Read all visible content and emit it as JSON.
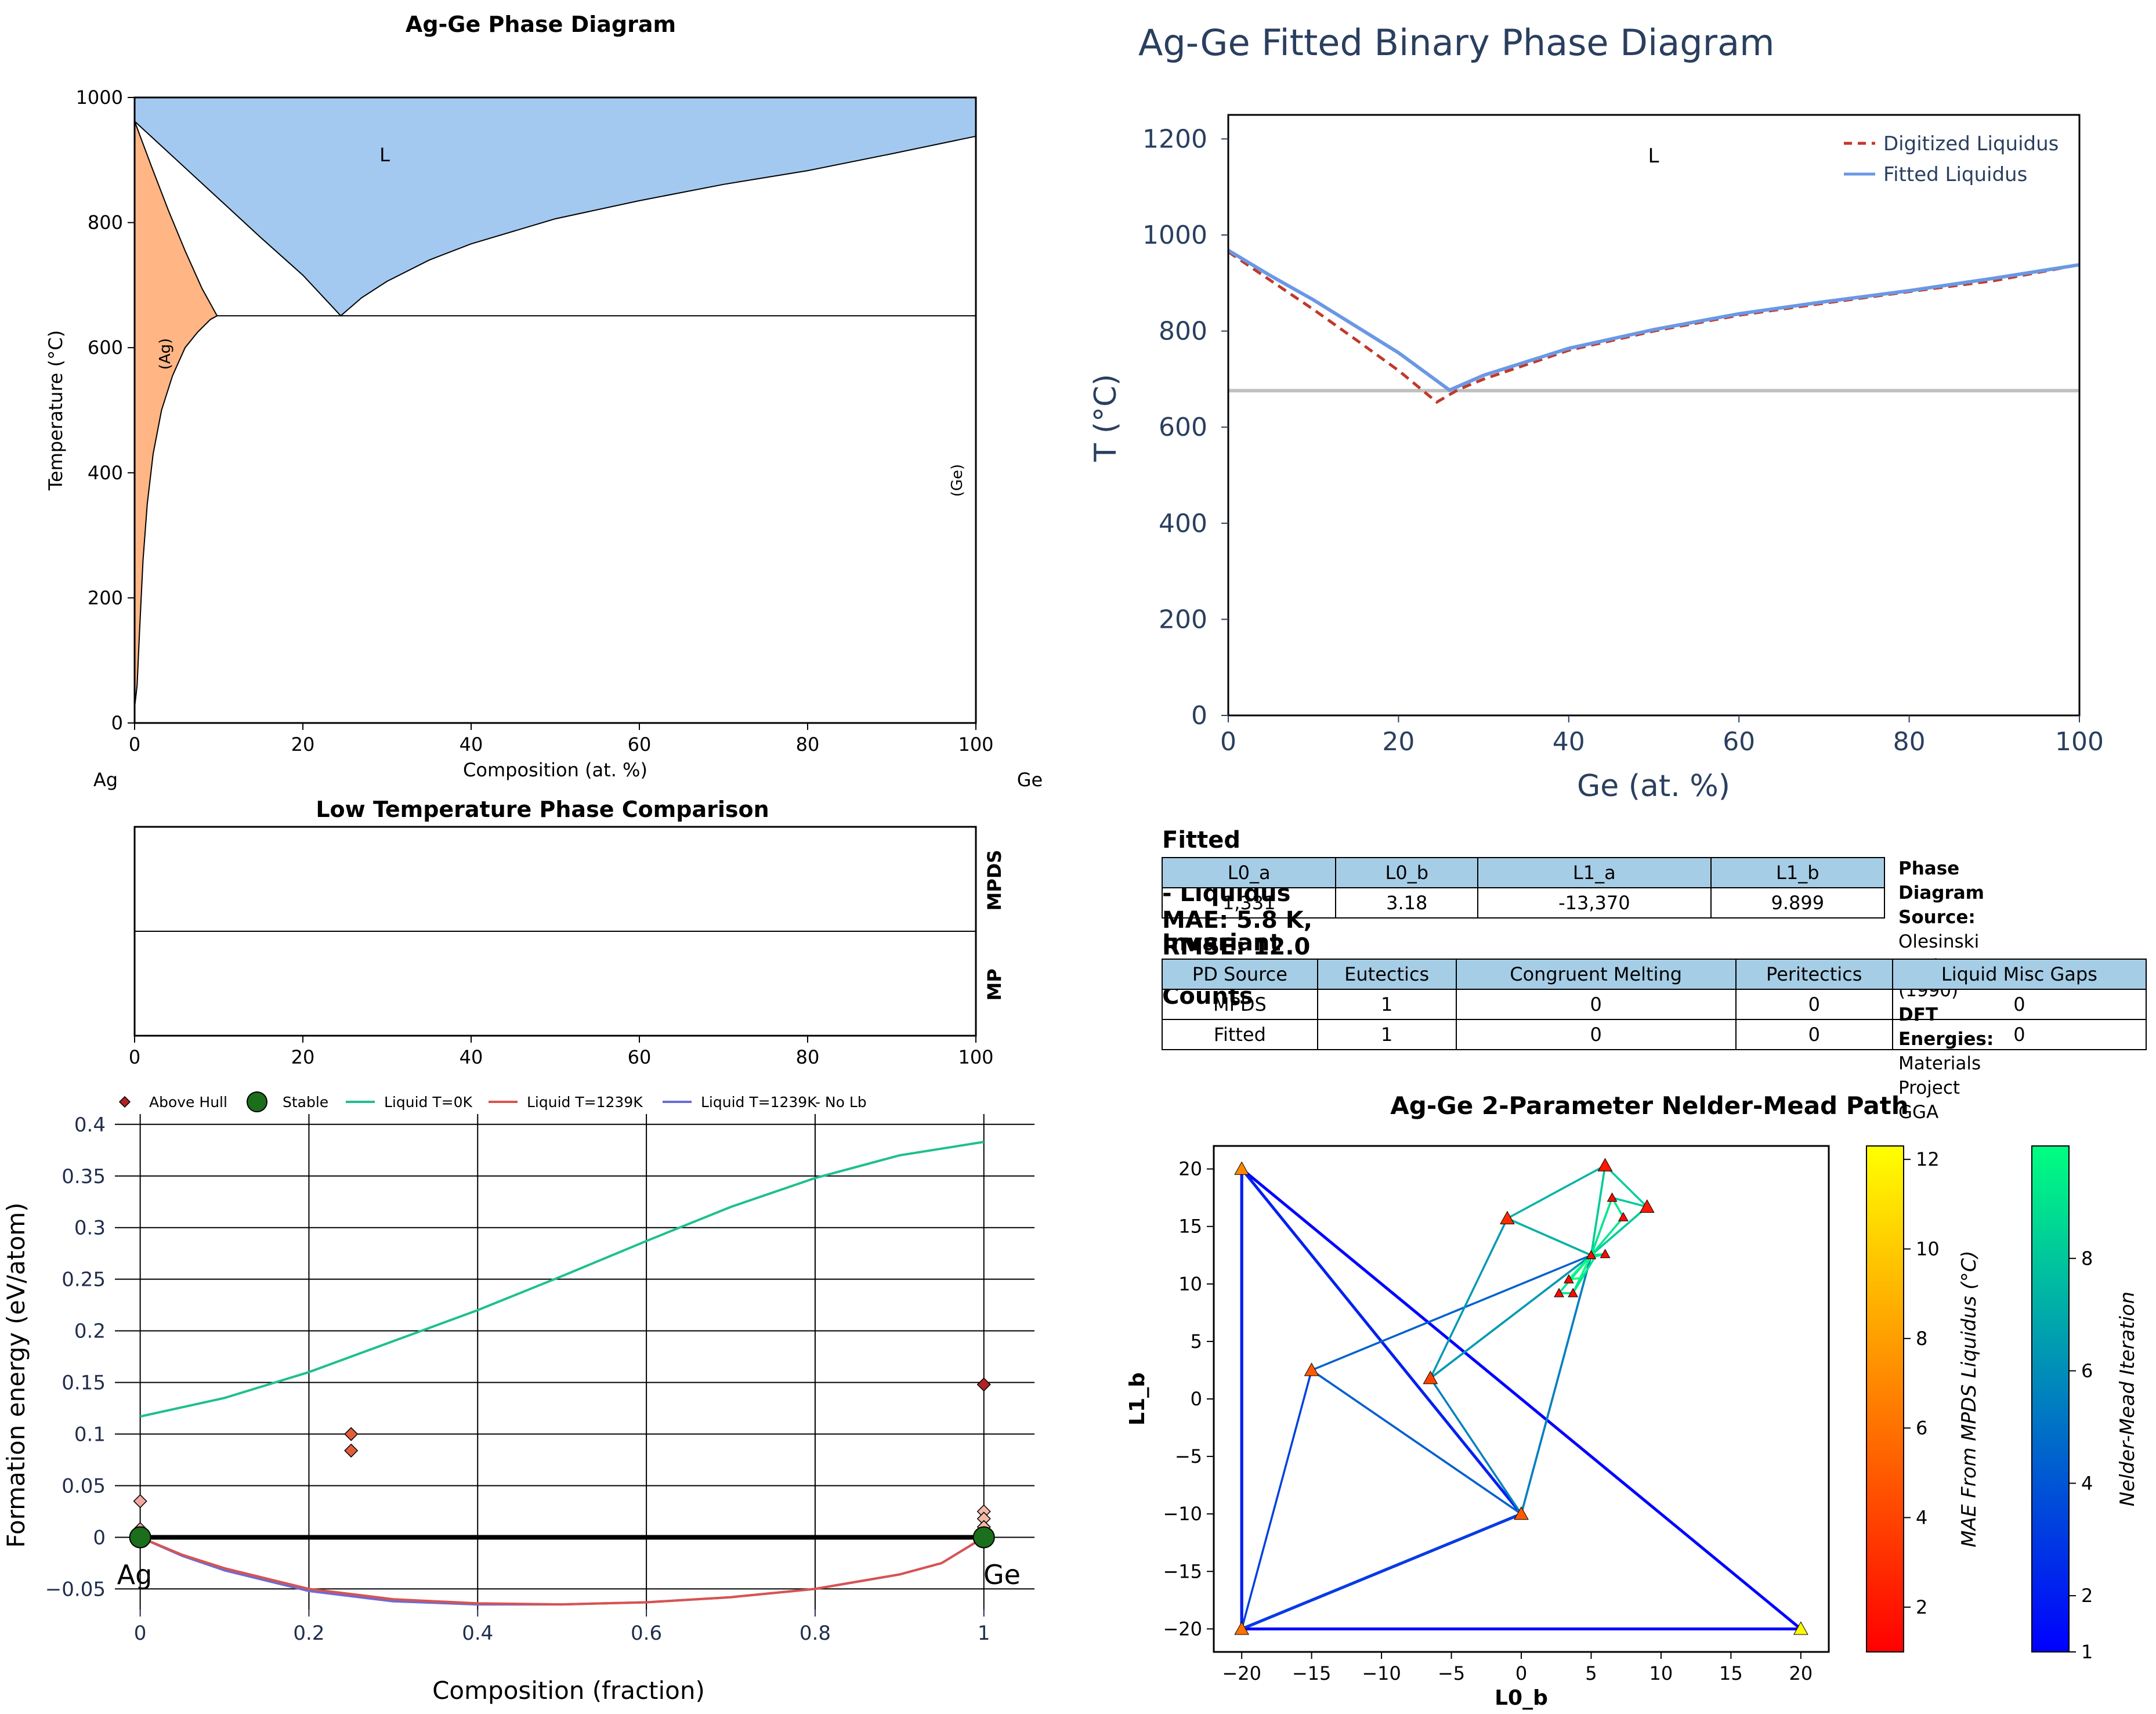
{
  "colors": {
    "liquid_fill": "#a3c9f1",
    "ag_fill": "#ffb584",
    "digitized": "#c0392b",
    "fitted": "#6a98e4",
    "invariant": "#c0c0c0",
    "table_header": "#a6cde6",
    "green_liquid": "#1fbf8f",
    "red_liquid": "#d9534f",
    "blue_liquid": "#6b6bd6",
    "stable": "#1b6e1b",
    "above_hull": "#b22222"
  },
  "panel1": {
    "title": "Ag-Ge Phase Diagram",
    "xlabel": "Composition (at. %)",
    "ylabel": "Temperature (°C)",
    "left_element": "Ag",
    "right_element": "Ge",
    "region_labels": {
      "liquid": "L",
      "ag": "(Ag)",
      "ge": "(Ge)"
    }
  },
  "panel2": {
    "title": "Low Temperature Phase Comparison",
    "row_labels": [
      "MPDS",
      "MP"
    ]
  },
  "panel3": {
    "title": "Ag-Ge Fitted Binary Phase Diagram",
    "xlabel": "Ge (at. %)",
    "ylabel": "T (°C)",
    "region_label": "L",
    "legend": [
      "Digitized Liquidus",
      "Fitted Liquidus"
    ]
  },
  "params": {
    "title": "Fitted Parameters - Liquidus MAE: 5.8 K, RMSE: 12.0 K",
    "headers": [
      "L0_a",
      "L0_b",
      "L1_a",
      "L1_b"
    ],
    "values": [
      "1,331",
      "3.18",
      "-13,370",
      "9.899"
    ]
  },
  "source": {
    "pd_label": "Phase Diagram Source:",
    "pd_value": "Olesinski et al. (1990)",
    "dft_label": "DFT Energies:",
    "dft_value": "Materials Project GGA"
  },
  "invariants": {
    "title": "Invariant Point Counts",
    "headers": [
      "PD Source",
      "Eutectics",
      "Congruent Melting",
      "Peritectics",
      "Liquid Misc Gaps"
    ],
    "rows": [
      [
        "MPDS",
        "1",
        "0",
        "0",
        "0"
      ],
      [
        "Fitted",
        "1",
        "0",
        "0",
        "0"
      ]
    ]
  },
  "panel4": {
    "xlabel": "Composition (fraction)",
    "ylabel": "Formation energy (eV/atom)",
    "legend": [
      "Above Hull",
      "Stable",
      "Liquid T=0K",
      "Liquid T=1239K",
      "Liquid T=1239K- No Lb"
    ],
    "end_labels": [
      "Ag",
      "Ge"
    ]
  },
  "panel5": {
    "title": "Ag-Ge 2-Parameter Nelder-Mead Path",
    "xlabel": "L0_b",
    "ylabel": "L1_b",
    "cbar1_label": "MAE From MPDS Liquidus (°C)",
    "cbar2_label": "Nelder-Mead Iteration"
  },
  "chart_data": [
    {
      "type": "area",
      "title": "Ag-Ge Phase Diagram",
      "xlabel": "Composition (at. %)",
      "ylabel": "Temperature (°C)",
      "xlim": [
        0,
        100
      ],
      "ylim": [
        0,
        1000
      ],
      "xticks": [
        0,
        20,
        40,
        60,
        80,
        100
      ],
      "yticks": [
        0,
        200,
        400,
        600,
        800,
        1000
      ],
      "liquidus": {
        "x": [
          0,
          5,
          10,
          15,
          20,
          24.5,
          27,
          30,
          35,
          40,
          50,
          60,
          70,
          80,
          90,
          100
        ],
        "y": [
          962,
          900,
          838,
          776,
          716,
          651,
          680,
          706,
          740,
          766,
          806,
          835,
          861,
          883,
          910,
          938
        ]
      },
      "ag_solvus_boundary": {
        "x": [
          0,
          0.3,
          0.6,
          1.0,
          1.5,
          2.2,
          3.2,
          4.5,
          6.0,
          7.5,
          9.0,
          9.8
        ],
        "y": [
          25,
          60,
          150,
          260,
          350,
          430,
          500,
          555,
          600,
          625,
          645,
          651
        ]
      },
      "ag_solidus": {
        "x": [
          0,
          2,
          4,
          6,
          8,
          9.8
        ],
        "y": [
          962,
          890,
          820,
          755,
          695,
          651
        ]
      },
      "eutectic": {
        "x": [
          9.8,
          100
        ],
        "y": 651
      },
      "region_labels": [
        "L",
        "(Ag)",
        "(Ge)"
      ]
    },
    {
      "type": "table",
      "title": "Low Temperature Phase Comparison",
      "xlim": [
        0,
        100
      ],
      "xticks": [
        0,
        20,
        40,
        60,
        80,
        100
      ],
      "rows": [
        "MPDS",
        "MP"
      ]
    },
    {
      "type": "line",
      "title": "Ag-Ge Fitted Binary Phase Diagram",
      "xlabel": "Ge (at. %)",
      "ylabel": "T (°C)",
      "xlim": [
        0,
        100
      ],
      "ylim": [
        0,
        1250
      ],
      "xticks": [
        0,
        20,
        40,
        60,
        80,
        100
      ],
      "yticks": [
        0,
        200,
        400,
        600,
        800,
        1000,
        1200
      ],
      "legend_position": "top-right",
      "series": [
        {
          "name": "Digitized Liquidus",
          "x": [
            0,
            5,
            10,
            15,
            20,
            24.5,
            27,
            30,
            40,
            50,
            60,
            70,
            80,
            90,
            100
          ],
          "y": [
            965,
            905,
            845,
            782,
            718,
            652,
            678,
            700,
            760,
            800,
            833,
            858,
            882,
            905,
            938
          ]
        },
        {
          "name": "Fitted Liquidus",
          "x": [
            0,
            5,
            10,
            15,
            20,
            26,
            30,
            40,
            50,
            60,
            70,
            80,
            90,
            100
          ],
          "y": [
            968,
            915,
            865,
            810,
            755,
            677,
            708,
            764,
            803,
            836,
            861,
            884,
            910,
            938
          ]
        }
      ],
      "invariant_line_y": 676
    },
    {
      "type": "line",
      "xlabel": "Composition (fraction)",
      "ylabel": "Formation energy (eV/atom)",
      "xlim": [
        -0.03,
        1.06
      ],
      "ylim": [
        -0.07,
        0.41
      ],
      "xticks": [
        0,
        0.2,
        0.4,
        0.6,
        0.8,
        1
      ],
      "yticks": [
        -0.05,
        0,
        0.05,
        0.1,
        0.15,
        0.2,
        0.25,
        0.3,
        0.35,
        0.4
      ],
      "yticklabels": [
        "−0.05",
        "0",
        "0.05",
        "0.1",
        "0.15",
        "0.2",
        "0.25",
        "0.3",
        "0.35",
        "0.4"
      ],
      "legend_position": "top",
      "series": [
        {
          "name": "Liquid T=0K",
          "x": [
            0,
            0.1,
            0.2,
            0.3,
            0.4,
            0.5,
            0.6,
            0.7,
            0.8,
            0.9,
            1.0
          ],
          "y": [
            0.117,
            0.135,
            0.16,
            0.19,
            0.22,
            0.253,
            0.287,
            0.32,
            0.348,
            0.37,
            0.383
          ]
        },
        {
          "name": "Liquid T=1239K",
          "x": [
            0,
            0.05,
            0.1,
            0.2,
            0.3,
            0.4,
            0.5,
            0.6,
            0.7,
            0.8,
            0.9,
            0.95,
            1.0
          ],
          "y": [
            0,
            -0.017,
            -0.03,
            -0.05,
            -0.06,
            -0.064,
            -0.065,
            -0.063,
            -0.058,
            -0.05,
            -0.036,
            -0.025,
            0
          ]
        },
        {
          "name": "Liquid T=1239K- No Lb",
          "x": [
            0,
            0.05,
            0.1,
            0.2,
            0.3,
            0.4,
            0.5,
            0.6,
            0.7,
            0.8,
            0.9,
            0.95,
            1.0
          ],
          "y": [
            0,
            -0.018,
            -0.032,
            -0.052,
            -0.062,
            -0.065,
            -0.065,
            -0.063,
            -0.058,
            -0.05,
            -0.036,
            -0.025,
            0
          ]
        },
        {
          "name": "Stable",
          "x": [
            0,
            1
          ],
          "y": [
            0,
            0
          ]
        },
        {
          "name": "Above Hull",
          "x": [
            0,
            0,
            0.25,
            0.25,
            1,
            1,
            1,
            1
          ],
          "y": [
            0.035,
            0.008,
            0.1,
            0.084,
            0.148,
            0.025,
            0.018,
            0.01
          ]
        }
      ]
    },
    {
      "type": "scatter",
      "title": "Ag-Ge 2-Parameter Nelder-Mead Path",
      "xlabel": "L0_b",
      "ylabel": "L1_b",
      "xlim": [
        -22,
        22
      ],
      "ylim": [
        -22,
        22
      ],
      "xticks": [
        -20,
        -15,
        -10,
        -5,
        0,
        5,
        10,
        15,
        20
      ],
      "xticklabels": [
        "−20",
        "−15",
        "−10",
        "−5",
        "0",
        "5",
        "10",
        "15",
        "20"
      ],
      "yticks": [
        -20,
        -15,
        -10,
        -5,
        0,
        5,
        10,
        15,
        20
      ],
      "yticklabels": [
        "−20",
        "−15",
        "−10",
        "−5",
        "0",
        "5",
        "10",
        "15",
        "20"
      ],
      "triangles": [
        {
          "x": [
            -20,
            20,
            -20
          ],
          "y": [
            20,
            -20,
            -20
          ],
          "iteration": 1
        },
        {
          "x": [
            -20,
            0,
            -20
          ],
          "y": [
            20,
            -10,
            -20
          ],
          "iteration": 2
        },
        {
          "x": [
            -15,
            0,
            -20
          ],
          "y": [
            2.5,
            -10,
            -20
          ],
          "iteration": 3
        },
        {
          "x": [
            -15,
            0,
            5
          ],
          "y": [
            2.5,
            -10,
            12.5
          ],
          "iteration": 4
        },
        {
          "x": [
            -6.5,
            0,
            5
          ],
          "y": [
            1.8,
            -10,
            12.5
          ],
          "iteration": 5
        },
        {
          "x": [
            -6.5,
            -1,
            5
          ],
          "y": [
            1.8,
            15.7,
            12.5
          ],
          "iteration": 6
        },
        {
          "x": [
            6,
            -1,
            5
          ],
          "y": [
            20.3,
            15.7,
            12.5
          ],
          "iteration": 7
        },
        {
          "x": [
            6,
            9,
            5
          ],
          "y": [
            20.3,
            16.7,
            12.5
          ],
          "iteration": 8
        },
        {
          "x": [
            6.5,
            9,
            5
          ],
          "y": [
            17.5,
            16.7,
            12.5
          ],
          "iteration": 8
        },
        {
          "x": [
            6.5,
            7.3,
            5
          ],
          "y": [
            17.5,
            15.8,
            12.5
          ],
          "iteration": 9
        },
        {
          "x": [
            5.3,
            6,
            5
          ],
          "y": [
            12.4,
            12.6,
            12.5
          ],
          "iteration": 9
        },
        {
          "x": [
            3.7,
            5.3,
            5
          ],
          "y": [
            9.2,
            12.4,
            12.5
          ],
          "iteration": 9
        },
        {
          "x": [
            2.7,
            3.7,
            5
          ],
          "y": [
            9.2,
            9.2,
            12.5
          ],
          "iteration": 9
        },
        {
          "x": [
            3.4,
            4.2,
            5
          ],
          "y": [
            10.4,
            10.5,
            12.5
          ],
          "iteration": 10
        }
      ],
      "points": [
        {
          "x": -20,
          "y": 20,
          "mae": 7
        },
        {
          "x": 20,
          "y": -20,
          "mae": 12
        },
        {
          "x": -20,
          "y": -20,
          "mae": 6
        },
        {
          "x": 0,
          "y": -10,
          "mae": 5
        },
        {
          "x": -15,
          "y": 2.5,
          "mae": 5
        },
        {
          "x": -6.5,
          "y": 1.8,
          "mae": 4
        },
        {
          "x": -1,
          "y": 15.7,
          "mae": 3
        },
        {
          "x": 6,
          "y": 20.3,
          "mae": 2
        },
        {
          "x": 9,
          "y": 16.7,
          "mae": 2
        },
        {
          "x": 6.5,
          "y": 17.5,
          "mae": 1.5
        },
        {
          "x": 7.3,
          "y": 15.8,
          "mae": 1.5
        },
        {
          "x": 5,
          "y": 12.5,
          "mae": 1.5
        },
        {
          "x": 6,
          "y": 12.6,
          "mae": 1.5
        },
        {
          "x": 3.7,
          "y": 9.2,
          "mae": 1.5
        },
        {
          "x": 2.7,
          "y": 9.2,
          "mae": 1.5
        },
        {
          "x": 3.4,
          "y": 10.4,
          "mae": 1.5
        }
      ],
      "colorbars": [
        {
          "label": "MAE From MPDS Liquidus (°C)",
          "range": [
            1,
            12.3
          ],
          "ticks": [
            2,
            4,
            6,
            8,
            10,
            12
          ]
        },
        {
          "label": "Nelder-Mead Iteration",
          "range": [
            1,
            10
          ],
          "ticks": [
            1,
            2,
            4,
            6,
            8
          ]
        }
      ]
    }
  ]
}
